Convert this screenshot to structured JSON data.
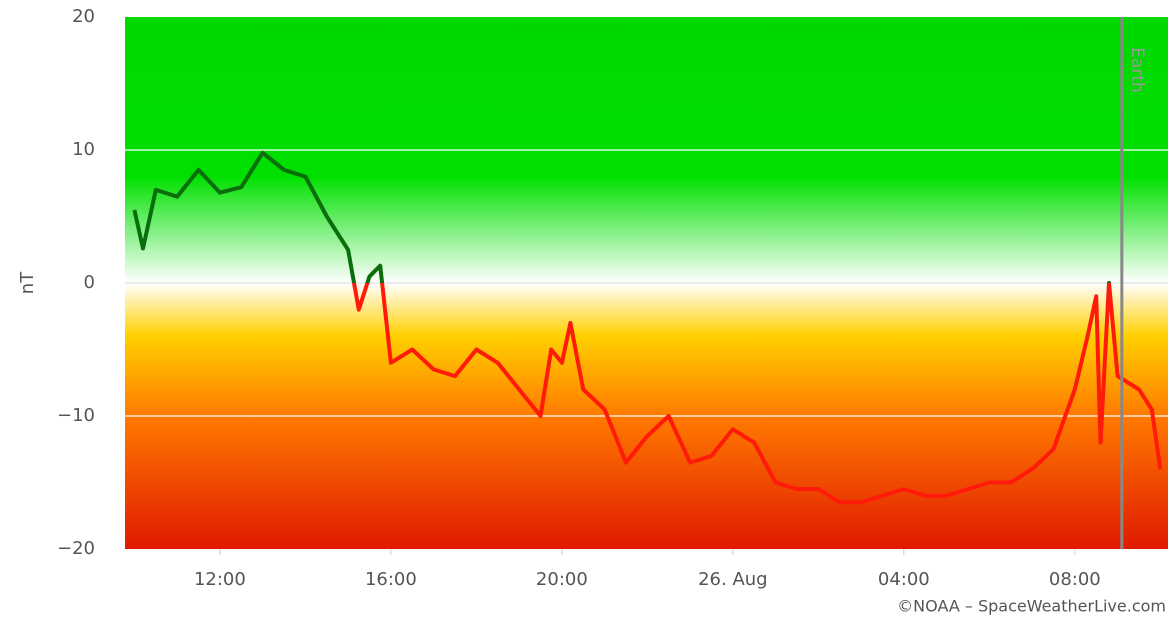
{
  "chart_data": {
    "type": "line",
    "y_label": "nT",
    "credit": "©NOAA – SpaceWeatherLive.com",
    "x": [
      10.0,
      10.2,
      10.5,
      11.0,
      11.5,
      12.0,
      12.5,
      13.0,
      13.5,
      14.0,
      14.5,
      15.0,
      15.25,
      15.5,
      15.75,
      16.0,
      16.5,
      17.0,
      17.5,
      18.0,
      18.5,
      19.0,
      19.5,
      19.75,
      20.0,
      20.2,
      20.5,
      21.0,
      21.5,
      22.0,
      22.5,
      23.0,
      23.5,
      24.0,
      24.5,
      25.0,
      25.5,
      26.0,
      26.5,
      27.0,
      27.5,
      28.0,
      28.5,
      29.0,
      29.5,
      30.0,
      30.5,
      31.0,
      31.5,
      32.0,
      32.3,
      32.5,
      32.6,
      32.8,
      33.0,
      33.5,
      33.8,
      34.0
    ],
    "values": [
      5.5,
      2.6,
      7,
      6.5,
      8.5,
      6.8,
      7.2,
      9.8,
      8.5,
      8,
      5,
      2.5,
      -2,
      0.5,
      1.3,
      -6,
      -5,
      -6.5,
      -7,
      -5,
      -6,
      -8,
      -10,
      -5,
      -6,
      -3,
      -8,
      -9.5,
      -13.5,
      -11.5,
      -10,
      -13.5,
      -13,
      -11,
      -12,
      -15,
      -15.5,
      -15.5,
      -16.5,
      -16.5,
      -16,
      -15.5,
      -16,
      -16,
      -15.5,
      -15,
      -15,
      -14,
      -12.5,
      -8,
      -4,
      -1,
      -12,
      0,
      -7,
      -8,
      -9.5,
      -14
    ],
    "color": "#0a6e0a",
    "negative_color": "#ff1a0a",
    "xlim": [
      9.78,
      34.18
    ],
    "xticks": [
      {
        "value": 12,
        "label": "12:00"
      },
      {
        "value": 16,
        "label": "16:00"
      },
      {
        "value": 20,
        "label": "20:00"
      },
      {
        "value": 24,
        "label": "26. Aug"
      },
      {
        "value": 28,
        "label": "04:00"
      },
      {
        "value": 32,
        "label": "08:00"
      }
    ],
    "ylim": [
      -20,
      20
    ],
    "yticks": [
      {
        "value": -20,
        "label": "−20"
      },
      {
        "value": -10,
        "label": "−10"
      },
      0,
      10,
      20
    ],
    "grid": true,
    "annotation": {
      "x": 33.1,
      "label": "Earth"
    }
  }
}
